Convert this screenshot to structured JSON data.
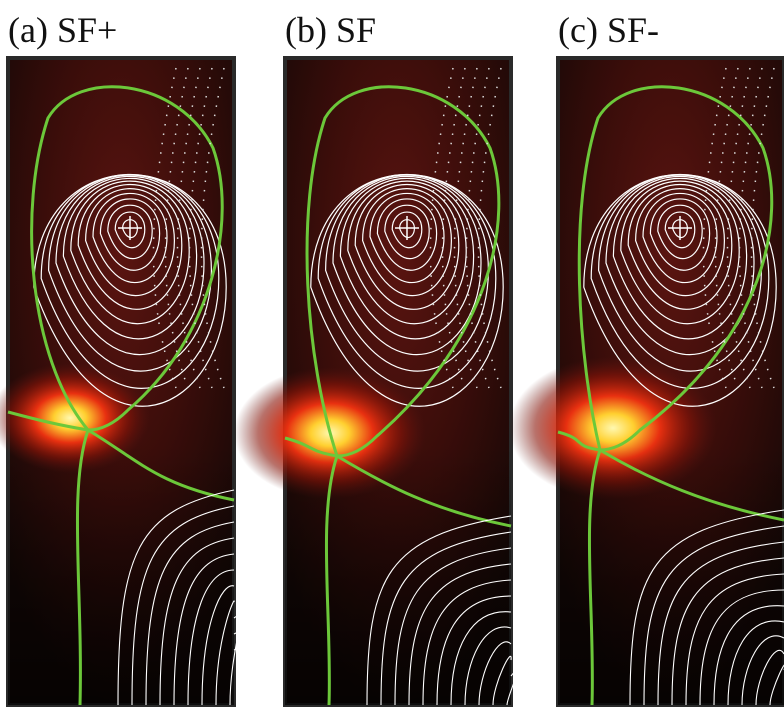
{
  "panels": [
    {
      "label": "(a) SF+"
    },
    {
      "label": "(b) SF"
    },
    {
      "label": "(c) SF-"
    }
  ]
}
